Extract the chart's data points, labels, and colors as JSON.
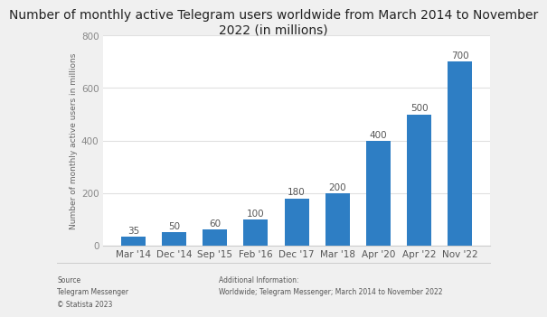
{
  "title": "Number of monthly active Telegram users worldwide from March 2014 to November\n2022 (in millions)",
  "categories": [
    "Mar '14",
    "Dec '14",
    "Sep '15",
    "Feb '16",
    "Dec '17",
    "Mar '18",
    "Apr '20",
    "Apr '22",
    "Nov '22"
  ],
  "values": [
    35,
    50,
    60,
    100,
    180,
    200,
    400,
    500,
    700
  ],
  "bar_color": "#2e7ec4",
  "ylabel": "Number of monthly active users in millions",
  "ylim": [
    0,
    800
  ],
  "yticks": [
    0,
    200,
    400,
    600,
    800
  ],
  "background_color": "#f0f0f0",
  "plot_bg_color": "#ffffff",
  "grid_color": "#e0e0e0",
  "title_fontsize": 10,
  "label_fontsize": 7.5,
  "tick_fontsize": 7.5,
  "ylabel_fontsize": 6.5,
  "source_text": "Source\nTelegram Messenger\n© Statista 2023",
  "additional_text": "Additional Information:\nWorldwide; Telegram Messenger; March 2014 to November 2022"
}
